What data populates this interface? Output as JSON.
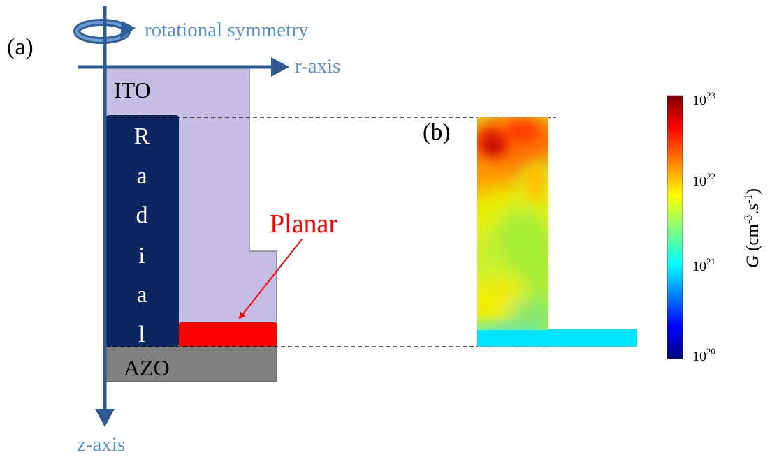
{
  "panel_a": {
    "label": "(a)",
    "rotation_label": "rotational symmetry",
    "r_axis_label": "r-axis",
    "z_axis_label": "z-axis",
    "ito_label": "ITO",
    "azo_label": "AZO",
    "radial_letters": [
      "R",
      "a",
      "d",
      "i",
      "a",
      "l"
    ],
    "planar_label": "Planar",
    "colors": {
      "ito": "#c5bde3",
      "radial": "#0b2560",
      "planar": "#ff0000",
      "azo": "#808080",
      "axis": "#2f5a8f",
      "axis_text": "#5b8fc9",
      "planar_text": "#ff0000"
    }
  },
  "panel_b": {
    "label": "(b)"
  },
  "colorbar": {
    "label_italic": "G",
    "label_rest": "(cm",
    "label_sup1": "-3",
    "label_mid": ".s",
    "label_sup2": "-1",
    "label_end": ")",
    "ticks": [
      {
        "base": "10",
        "exp": "23"
      },
      {
        "base": "10",
        "exp": "22"
      },
      {
        "base": "10",
        "exp": "21"
      },
      {
        "base": "10",
        "exp": "20"
      }
    ],
    "scale": "log",
    "colormap": "jet"
  }
}
